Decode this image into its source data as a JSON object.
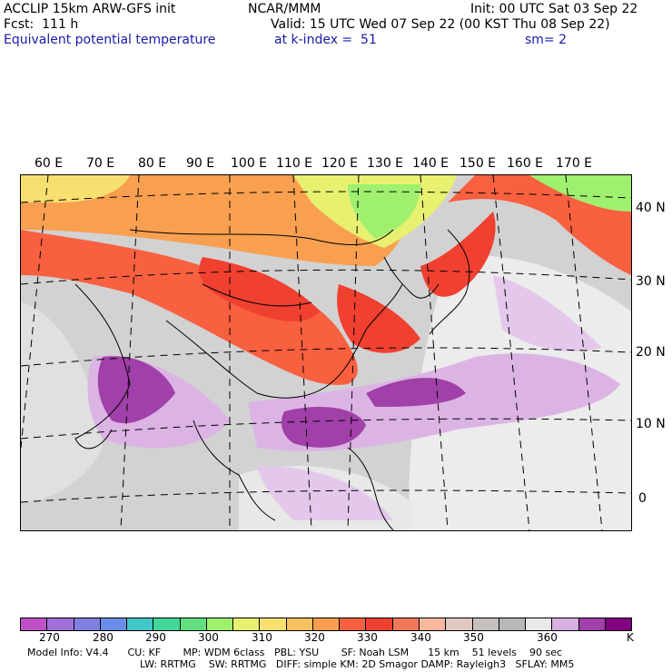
{
  "header": {
    "model_title": "ACCLIP 15km ARW-GFS init",
    "org": "NCAR/MMM",
    "init": "Init: 00 UTC Sat 03 Sep 22",
    "fcst": "Fcst:  111 h",
    "valid": "Valid: 15 UTC Wed 07 Sep 22 (00 KST Thu 08 Sep 22)",
    "field": "Equivalent potential temperature",
    "level": "at k-index =  51",
    "smooth": "sm= 2"
  },
  "map": {
    "lon_labels": [
      "60 E",
      "70 E",
      "80 E",
      "90 E",
      "100 E",
      "110 E",
      "120 E",
      "130 E",
      "140 E",
      "150 E",
      "160 E",
      "170 E"
    ],
    "lat_labels": [
      "40 N",
      "30 N",
      "20 N",
      "10 N",
      "0"
    ]
  },
  "colorbar": {
    "colors": [
      "#c050c8",
      "#a070d8",
      "#8080e0",
      "#6a8ee8",
      "#40c8c8",
      "#40d898",
      "#60e080",
      "#a0f070",
      "#e8f070",
      "#f8e070",
      "#f8c060",
      "#f8a050",
      "#f86040",
      "#f04030",
      "#f07858",
      "#f8b8a0",
      "#e0c8c0",
      "#c8c0bc",
      "#b8b8b8",
      "#e8e8e8",
      "#d8b0e0",
      "#a040a8",
      "#800080"
    ],
    "labels": [
      "270",
      "280",
      "290",
      "300",
      "310",
      "320",
      "330",
      "340",
      "350",
      "360"
    ],
    "unit": "K"
  },
  "footer": {
    "line1": "Model Info: V4.4      CU: KF       MP: WDM 6class   PBL: YSU       SF: Noah LSM      15 km    51 levels    90 sec",
    "line2": "LW: RRTMG    SW: RRTMG   DIFF: simple KM: 2D Smagor DAMP: Rayleigh3   SFLAY: MM5"
  }
}
